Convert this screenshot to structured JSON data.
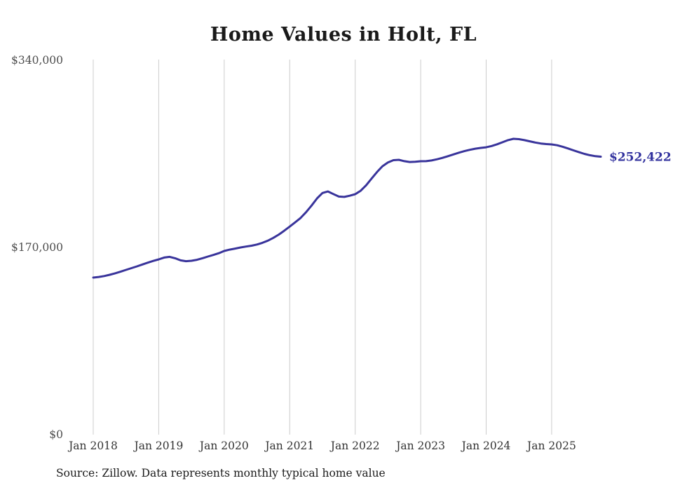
{
  "page": {
    "title": "Home Values in Holt, FL",
    "source_note": "Source: Zillow. Data represents monthly typical home value",
    "current_value_label": "$252,422"
  },
  "chart_data": {
    "type": "line",
    "title": "Home Values in Holt, FL",
    "series_name": "Monthly typical home value",
    "x": [
      "2018-01",
      "2018-02",
      "2018-03",
      "2018-04",
      "2018-05",
      "2018-06",
      "2018-07",
      "2018-08",
      "2018-09",
      "2018-10",
      "2018-11",
      "2018-12",
      "2019-01",
      "2019-02",
      "2019-03",
      "2019-04",
      "2019-05",
      "2019-06",
      "2019-07",
      "2019-08",
      "2019-09",
      "2019-10",
      "2019-11",
      "2019-12",
      "2020-01",
      "2020-02",
      "2020-03",
      "2020-04",
      "2020-05",
      "2020-06",
      "2020-07",
      "2020-08",
      "2020-09",
      "2020-10",
      "2020-11",
      "2020-12",
      "2021-01",
      "2021-02",
      "2021-03",
      "2021-04",
      "2021-05",
      "2021-06",
      "2021-07",
      "2021-08",
      "2021-09",
      "2021-10",
      "2021-11",
      "2021-12",
      "2022-01",
      "2022-02",
      "2022-03",
      "2022-04",
      "2022-05",
      "2022-06",
      "2022-07",
      "2022-08",
      "2022-09",
      "2022-10",
      "2022-11",
      "2022-12",
      "2023-01",
      "2023-02",
      "2023-03",
      "2023-04",
      "2023-05",
      "2023-06",
      "2023-07",
      "2023-08",
      "2023-09",
      "2023-10",
      "2023-11",
      "2023-12",
      "2024-01",
      "2024-02",
      "2024-03",
      "2024-04",
      "2024-05",
      "2024-06",
      "2024-07",
      "2024-08",
      "2024-09",
      "2024-10",
      "2024-11",
      "2024-12",
      "2025-01",
      "2025-02",
      "2025-03",
      "2025-04",
      "2025-05",
      "2025-06",
      "2025-07",
      "2025-08",
      "2025-09",
      "2025-10"
    ],
    "values": [
      142600,
      143200,
      144000,
      145200,
      146500,
      148000,
      149600,
      151200,
      152800,
      154500,
      156200,
      157800,
      159200,
      160800,
      161500,
      160200,
      158300,
      157500,
      157900,
      158800,
      160200,
      161700,
      163200,
      164800,
      166800,
      168000,
      169000,
      170000,
      170800,
      171600,
      172700,
      174200,
      176200,
      178700,
      181700,
      185200,
      189000,
      192800,
      196800,
      202000,
      208000,
      214500,
      219500,
      220900,
      218500,
      216200,
      215900,
      217000,
      218400,
      221500,
      226500,
      232500,
      238500,
      243800,
      247200,
      249300,
      249600,
      248400,
      247600,
      247900,
      248300,
      248400,
      249000,
      250100,
      251400,
      252900,
      254500,
      256100,
      257500,
      258700,
      259700,
      260400,
      261000,
      262100,
      263700,
      265600,
      267500,
      268700,
      268400,
      267500,
      266400,
      265300,
      264400,
      263900,
      263600,
      262800,
      261500,
      259900,
      258200,
      256500,
      255000,
      253800,
      252900,
      252422
    ],
    "x_ticks": [
      "Jan 2018",
      "Jan 2019",
      "Jan 2020",
      "Jan 2021",
      "Jan 2022",
      "Jan 2023",
      "Jan 2024",
      "Jan 2025"
    ],
    "y_ticks": [
      {
        "label": "$340,000",
        "value": 340000
      },
      {
        "label": "$170,000",
        "value": 170000
      },
      {
        "label": "$0",
        "value": 0
      }
    ],
    "ylim": [
      0,
      340000
    ],
    "grid": "vertical-only",
    "legend": "none",
    "end_label": "$252,422",
    "end_value": 252422,
    "line_color": "#39349b",
    "end_label_color": "#32329e",
    "grid_color": "#cccccc"
  }
}
